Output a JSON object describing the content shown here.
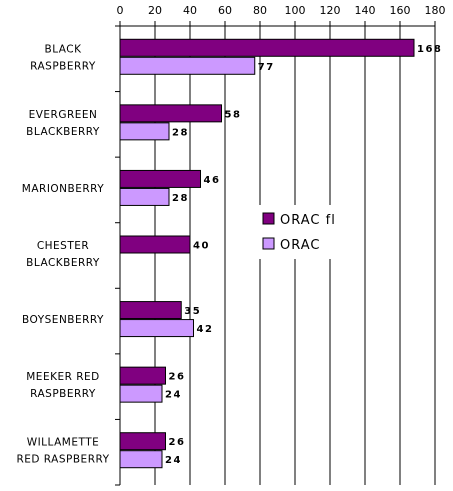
{
  "chart_data": {
    "type": "bar",
    "orientation": "horizontal",
    "categories": [
      [
        "BLACK",
        "RASPBERRY"
      ],
      [
        "EVERGREEN",
        "BLACKBERRY"
      ],
      [
        "MARIONBERRY"
      ],
      [
        "CHESTER",
        "BLACKBERRY"
      ],
      [
        "BOYSENBERRY"
      ],
      [
        "MEEKER RED",
        "RASPBERRY"
      ],
      [
        "WILLAMETTE",
        "RED RASPBERRY"
      ]
    ],
    "series": [
      {
        "name": "ORAC fl",
        "color": "#800080",
        "values": [
          168,
          58,
          46,
          40,
          35,
          26,
          26
        ]
      },
      {
        "name": "ORAC",
        "color": "#cc99ff",
        "values": [
          77,
          28,
          28,
          null,
          42,
          24,
          24
        ]
      }
    ],
    "xlim": [
      0,
      180
    ],
    "xticks": [
      0,
      20,
      40,
      60,
      80,
      100,
      120,
      140,
      160,
      180
    ],
    "xaxis_position": "top",
    "grid": "vertical",
    "legend_placement": "right-middle",
    "title": "",
    "xlabel": "",
    "ylabel": ""
  }
}
